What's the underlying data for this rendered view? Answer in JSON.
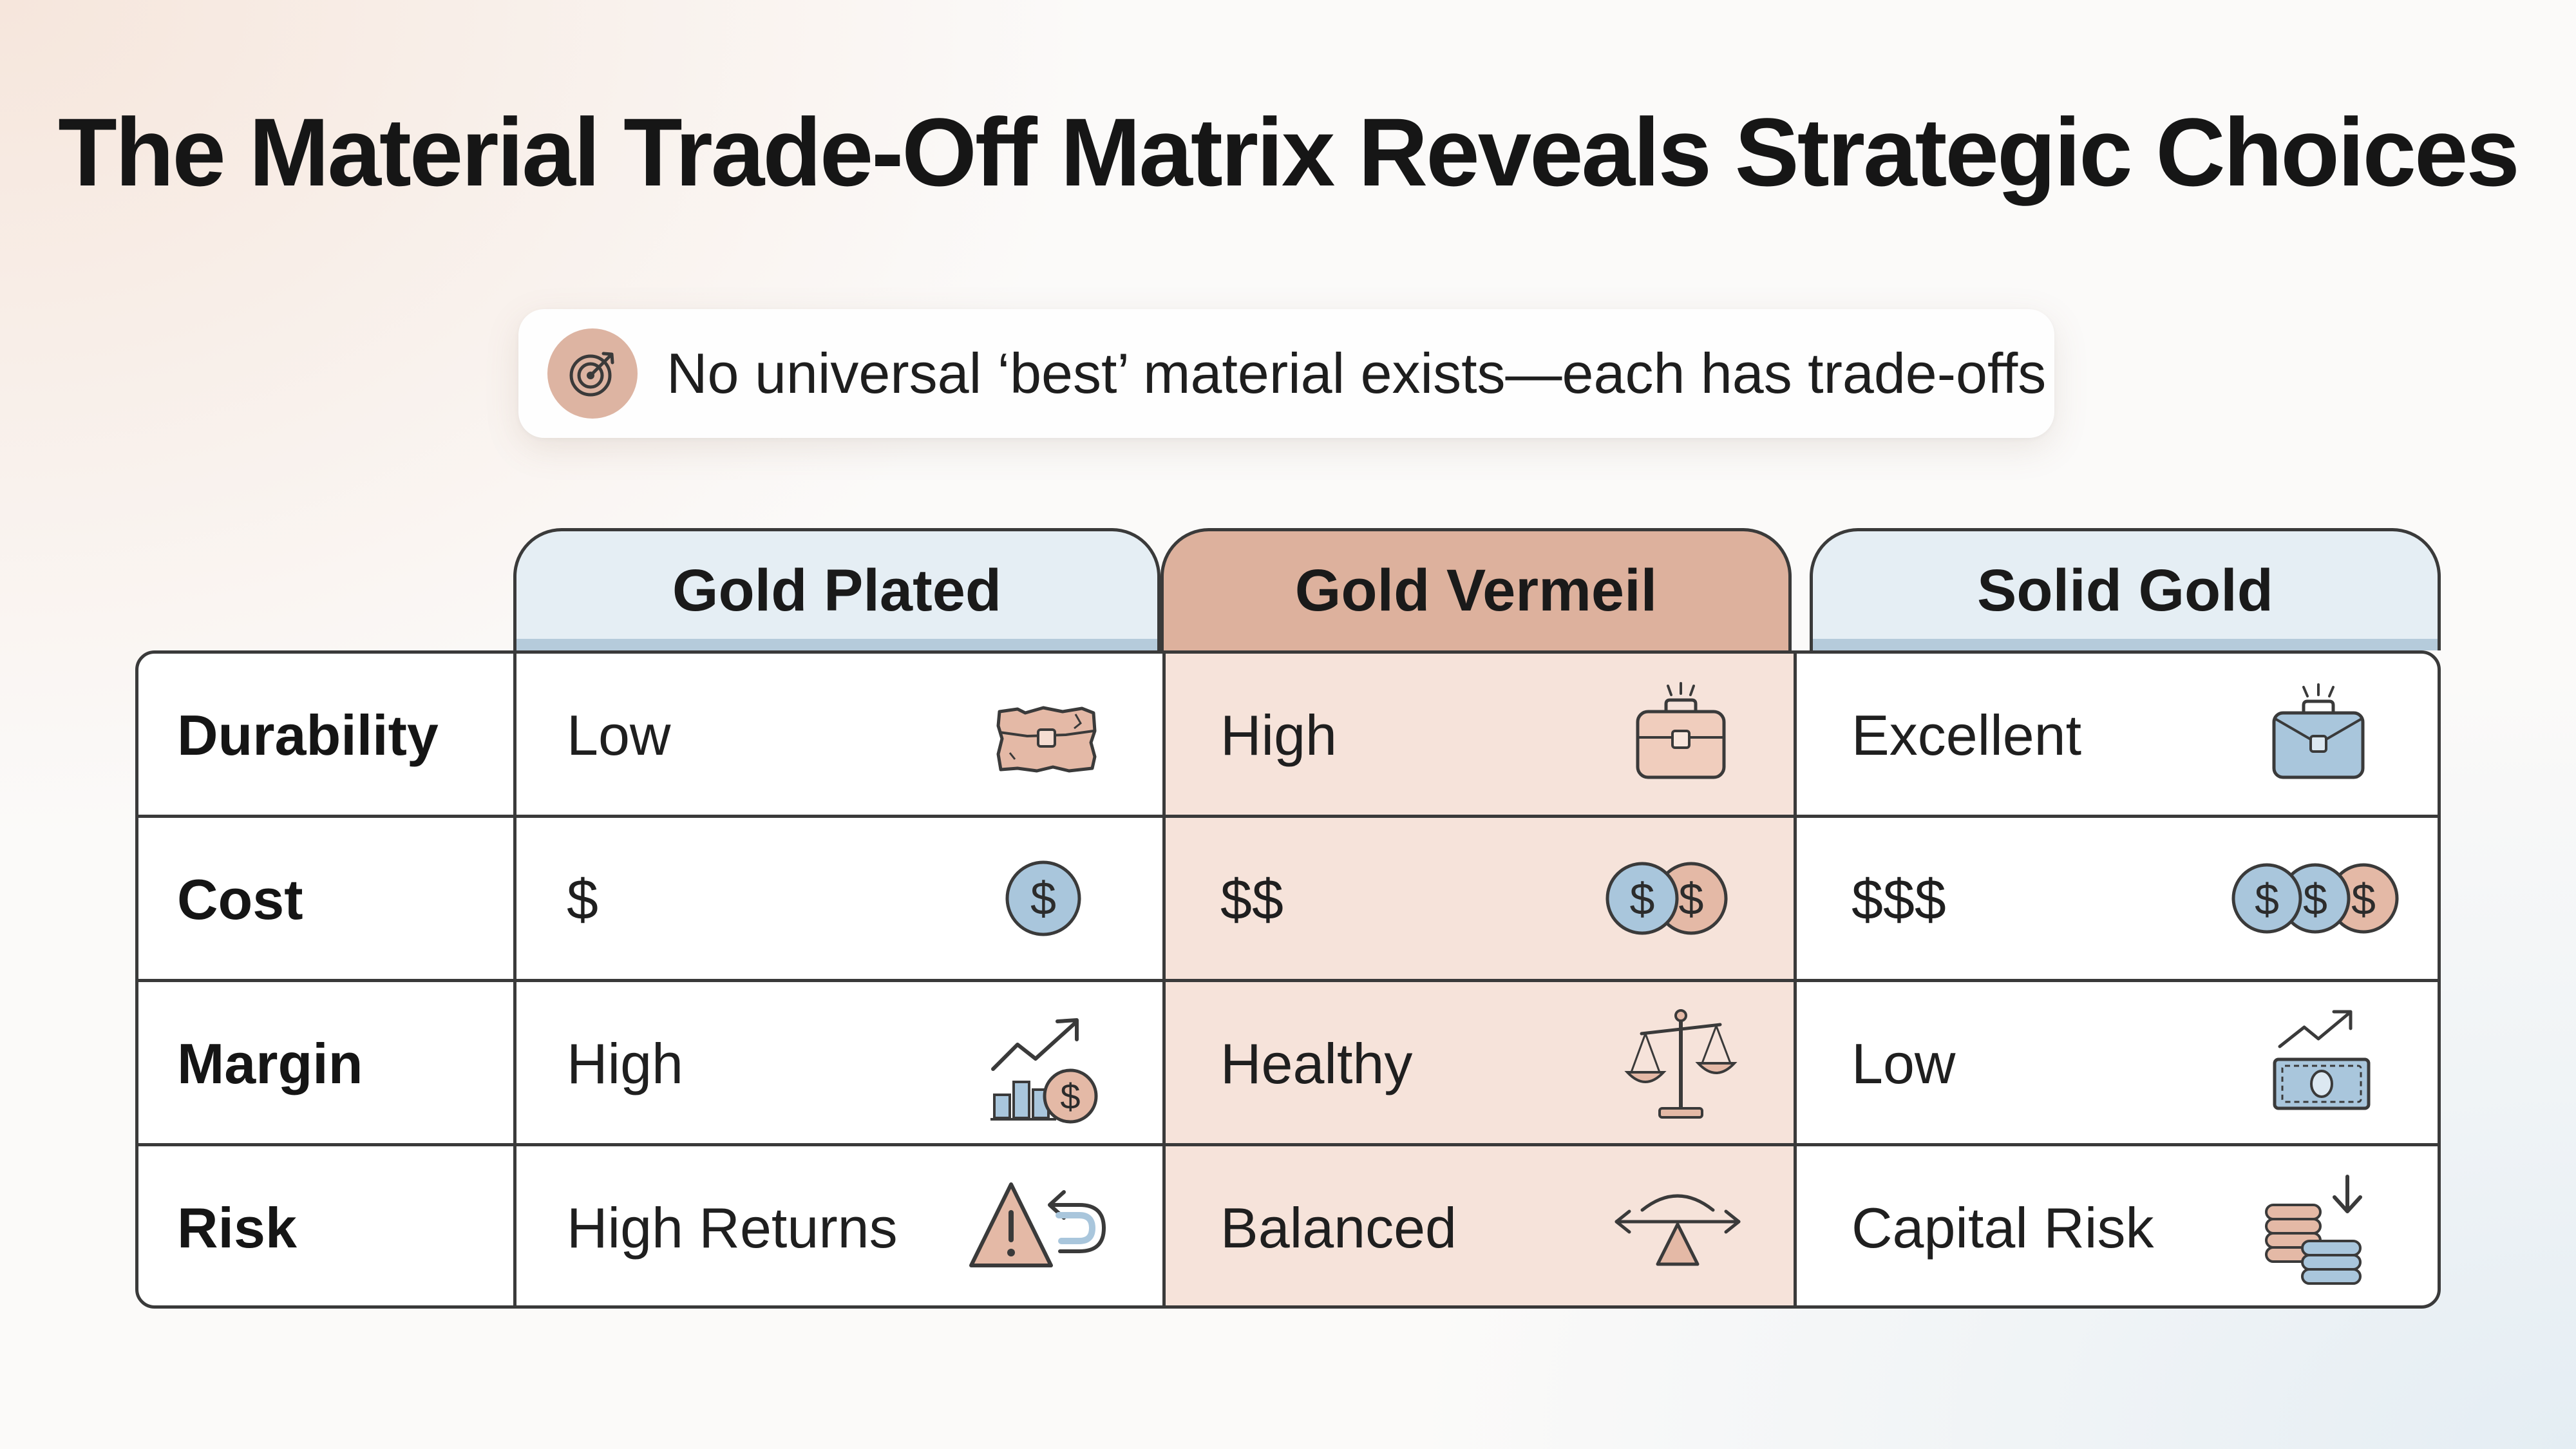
{
  "title": "The Material Trade-Off Matrix Reveals Strategic Choices",
  "callout": {
    "text": "No universal ‘best’ material exists—each has trade-offs",
    "icon": "target-icon",
    "icon_color": "#ddb4a2"
  },
  "columns": [
    {
      "id": "plated",
      "label": "Gold Plated",
      "header_color": "#e5eef4"
    },
    {
      "id": "vermeil",
      "label": "Gold Vermeil",
      "header_color": "#ddb19d",
      "highlighted": true
    },
    {
      "id": "solid",
      "label": "Solid Gold",
      "header_color": "#e5eef4"
    }
  ],
  "rows": [
    {
      "label": "Durability",
      "cells": [
        {
          "value": "Low",
          "icon": "worn-bag-icon"
        },
        {
          "value": "High",
          "icon": "sturdy-bag-icon"
        },
        {
          "value": "Excellent",
          "icon": "shining-bag-icon"
        }
      ]
    },
    {
      "label": "Cost",
      "cells": [
        {
          "value": "$",
          "icon": "one-coin-icon"
        },
        {
          "value": "$$",
          "icon": "two-coins-icon"
        },
        {
          "value": "$$$",
          "icon": "three-coins-icon"
        }
      ]
    },
    {
      "label": "Margin",
      "cells": [
        {
          "value": "High",
          "icon": "growth-chart-coin-icon"
        },
        {
          "value": "Healthy",
          "icon": "balance-scale-icon"
        },
        {
          "value": "Low",
          "icon": "banknote-trend-icon"
        }
      ]
    },
    {
      "label": "Risk",
      "cells": [
        {
          "value": "High Returns",
          "icon": "warning-return-icon"
        },
        {
          "value": "Balanced",
          "icon": "seesaw-icon"
        },
        {
          "value": "Capital Risk",
          "icon": "coin-stack-down-icon"
        }
      ]
    }
  ],
  "colors": {
    "vermeil_band": "#f6e3da",
    "accent_blue": "#a9c6dc",
    "accent_peach": "#e4b9a6",
    "border": "#3a3a3a"
  }
}
